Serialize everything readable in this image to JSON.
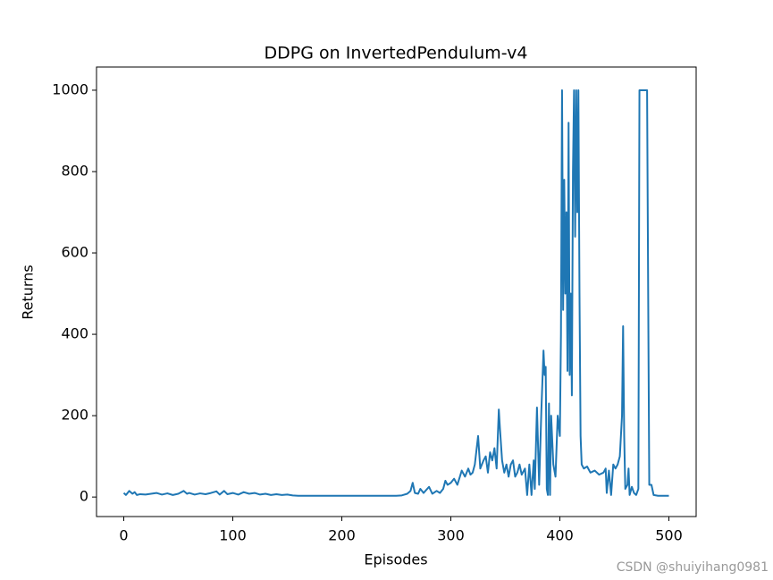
{
  "chart_data": {
    "type": "line",
    "title": "DDPG on InvertedPendulum-v4",
    "x_label": "Episodes",
    "y_label": "Returns",
    "watermark": "CSDN @shuiyihang0981",
    "xlim": [
      -25,
      525
    ],
    "xticks": [
      0,
      100,
      200,
      300,
      400,
      500
    ],
    "ylim": [
      -48,
      1057
    ],
    "yticks": [
      0,
      200,
      400,
      600,
      800,
      1000
    ],
    "series": [
      {
        "name": "Returns",
        "color": "#1f77b4",
        "x": [
          0,
          2,
          5,
          8,
          10,
          12,
          15,
          20,
          25,
          30,
          35,
          40,
          45,
          50,
          55,
          58,
          60,
          65,
          70,
          75,
          80,
          85,
          88,
          92,
          95,
          100,
          105,
          110,
          115,
          120,
          125,
          130,
          135,
          140,
          145,
          150,
          155,
          160,
          200,
          250,
          255,
          260,
          263,
          265,
          267,
          270,
          272,
          275,
          280,
          283,
          287,
          290,
          293,
          295,
          297,
          300,
          303,
          306,
          310,
          313,
          316,
          318,
          320,
          322,
          325,
          327,
          330,
          332,
          334,
          336,
          338,
          340,
          342,
          344,
          345,
          347,
          349,
          351,
          353,
          355,
          357,
          359,
          361,
          363,
          365,
          368,
          370,
          372,
          374,
          376,
          377,
          379,
          381,
          383,
          385,
          386,
          387,
          388,
          389,
          390,
          391,
          392,
          394,
          396,
          398,
          400,
          401,
          402,
          403,
          404,
          405,
          406,
          407,
          408,
          409,
          410,
          411,
          412,
          413,
          414,
          415,
          416,
          417,
          418,
          419,
          420,
          422,
          425,
          428,
          432,
          436,
          440,
          442,
          443,
          445,
          447,
          449,
          451,
          453,
          455,
          457,
          458,
          459,
          460,
          462,
          463,
          464,
          466,
          468,
          470,
          472,
          473,
          480,
          481,
          482,
          484,
          486,
          490,
          500
        ],
        "values": [
          10,
          5,
          15,
          8,
          12,
          5,
          7,
          6,
          8,
          10,
          6,
          9,
          5,
          8,
          15,
          8,
          10,
          6,
          9,
          7,
          10,
          14,
          6,
          15,
          7,
          10,
          6,
          12,
          8,
          10,
          6,
          8,
          5,
          7,
          5,
          6,
          4,
          3,
          3,
          3,
          4,
          8,
          15,
          35,
          10,
          8,
          20,
          10,
          25,
          8,
          15,
          10,
          20,
          40,
          30,
          35,
          45,
          30,
          65,
          50,
          70,
          55,
          60,
          80,
          150,
          70,
          90,
          100,
          60,
          110,
          90,
          120,
          70,
          215,
          170,
          90,
          60,
          80,
          50,
          80,
          90,
          50,
          60,
          80,
          55,
          70,
          5,
          80,
          5,
          90,
          20,
          220,
          30,
          210,
          360,
          300,
          320,
          20,
          5,
          230,
          5,
          200,
          80,
          50,
          200,
          150,
          400,
          1000,
          460,
          780,
          500,
          700,
          310,
          920,
          300,
          500,
          250,
          800,
          1000,
          640,
          1000,
          700,
          1000,
          500,
          150,
          80,
          70,
          75,
          60,
          65,
          55,
          60,
          70,
          10,
          65,
          5,
          80,
          70,
          80,
          100,
          200,
          420,
          150,
          20,
          30,
          70,
          5,
          25,
          10,
          5,
          20,
          1000,
          1000,
          500,
          30,
          30,
          5,
          3,
          3
        ]
      }
    ]
  }
}
